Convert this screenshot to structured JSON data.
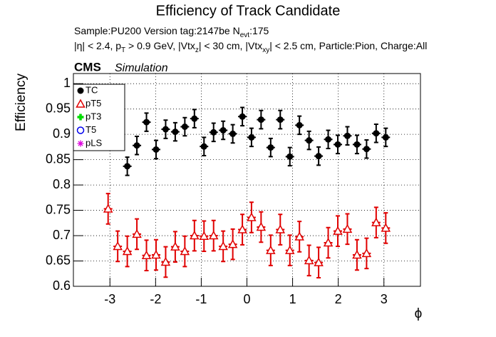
{
  "chart_data": {
    "type": "scatter",
    "title": "Efficiency of Track Candidate",
    "subtitle_lines": [
      [
        {
          "text": "Sample:PU200   Version tag:2147be  N"
        },
        {
          "text": "evt",
          "sub": true
        },
        {
          "text": ":175"
        }
      ],
      [
        {
          "text": "|η| < 2.4, p"
        },
        {
          "text": "T",
          "sub": true
        },
        {
          "text": " > 0.9 GeV, |Vtx"
        },
        {
          "text": "z",
          "sub": true
        },
        {
          "text": "| < 30 cm, |Vtx"
        },
        {
          "text": "xy",
          "sub": true
        },
        {
          "text": "| < 2.5 cm, Particle:Pion, Charge:All"
        }
      ]
    ],
    "experiment": "CMS",
    "experiment_label": "Simulation",
    "xlabel": "ϕ",
    "ylabel": "Efficiency",
    "x": [
      -3.04,
      -2.83,
      -2.62,
      -2.41,
      -2.2,
      -1.99,
      -1.78,
      -1.57,
      -1.36,
      -1.15,
      -0.94,
      -0.73,
      -0.52,
      -0.31,
      -0.1,
      0.1,
      0.31,
      0.52,
      0.73,
      0.94,
      1.15,
      1.36,
      1.57,
      1.78,
      1.99,
      2.2,
      2.41,
      2.62,
      2.83,
      3.04
    ],
    "series": [
      {
        "name": "TC",
        "color": "#000000",
        "marker": "filled-circle",
        "values": [
          null,
          null,
          0.837,
          0.878,
          0.924,
          0.87,
          0.91,
          0.905,
          0.915,
          0.931,
          0.876,
          0.904,
          0.908,
          0.901,
          0.935,
          0.894,
          0.929,
          0.874,
          0.929,
          0.856,
          0.918,
          0.888,
          0.857,
          0.89,
          0.88,
          0.897,
          0.88,
          0.871,
          0.902,
          0.894
        ],
        "errors": [
          null,
          null,
          0.018,
          0.018,
          0.018,
          0.018,
          0.018,
          0.018,
          0.018,
          0.018,
          0.018,
          0.018,
          0.018,
          0.018,
          0.018,
          0.018,
          0.018,
          0.018,
          0.018,
          0.018,
          0.018,
          0.018,
          0.018,
          0.018,
          0.018,
          0.018,
          0.018,
          0.018,
          0.018,
          0.018
        ]
      },
      {
        "name": "pT5",
        "color": "#e00000",
        "marker": "open-triangle",
        "values": [
          0.753,
          0.679,
          0.669,
          0.703,
          0.661,
          0.662,
          0.648,
          0.678,
          0.669,
          0.7,
          0.699,
          0.7,
          0.679,
          0.683,
          0.712,
          0.736,
          0.717,
          0.671,
          0.712,
          0.671,
          0.698,
          0.651,
          0.647,
          0.686,
          0.709,
          0.713,
          0.662,
          0.665,
          0.726,
          0.715
        ],
        "errors": [
          0.03,
          0.03,
          0.03,
          0.03,
          0.03,
          0.03,
          0.03,
          0.03,
          0.03,
          0.03,
          0.03,
          0.03,
          0.03,
          0.03,
          0.03,
          0.03,
          0.03,
          0.03,
          0.03,
          0.03,
          0.03,
          0.03,
          0.03,
          0.03,
          0.03,
          0.03,
          0.03,
          0.03,
          0.03,
          0.03
        ]
      },
      {
        "name": "pT3",
        "color": "#00dd00",
        "marker": "filled-cross",
        "values": [
          null,
          null,
          null,
          null,
          null,
          null,
          null,
          null,
          null,
          null,
          null,
          null,
          null,
          null,
          null,
          null,
          null,
          null,
          null,
          null,
          null,
          null,
          null,
          null,
          null,
          null,
          null,
          null,
          null,
          null
        ]
      },
      {
        "name": "T5",
        "color": "#0000ee",
        "marker": "open-circle",
        "values": [
          null,
          null,
          null,
          null,
          null,
          null,
          null,
          null,
          null,
          null,
          null,
          null,
          null,
          null,
          null,
          null,
          null,
          null,
          null,
          null,
          null,
          null,
          null,
          null,
          null,
          null,
          null,
          null,
          null,
          null
        ]
      },
      {
        "name": "pLS",
        "color": "#dd00dd",
        "marker": "open-star",
        "values": [
          null,
          null,
          null,
          null,
          null,
          null,
          null,
          null,
          null,
          null,
          null,
          null,
          null,
          null,
          null,
          null,
          null,
          null,
          null,
          null,
          null,
          null,
          null,
          null,
          null,
          null,
          null,
          null,
          null,
          null
        ]
      }
    ],
    "xlim": [
      -3.8,
      3.8
    ],
    "xticks": [
      -3,
      -2,
      -1,
      0,
      1,
      2,
      3
    ],
    "ylim": [
      0.6,
      1.02
    ],
    "yticks": [
      0.6,
      0.65,
      0.7,
      0.75,
      0.8,
      0.85,
      0.9,
      0.95,
      1
    ],
    "grid": true,
    "legend": "upper-left"
  }
}
